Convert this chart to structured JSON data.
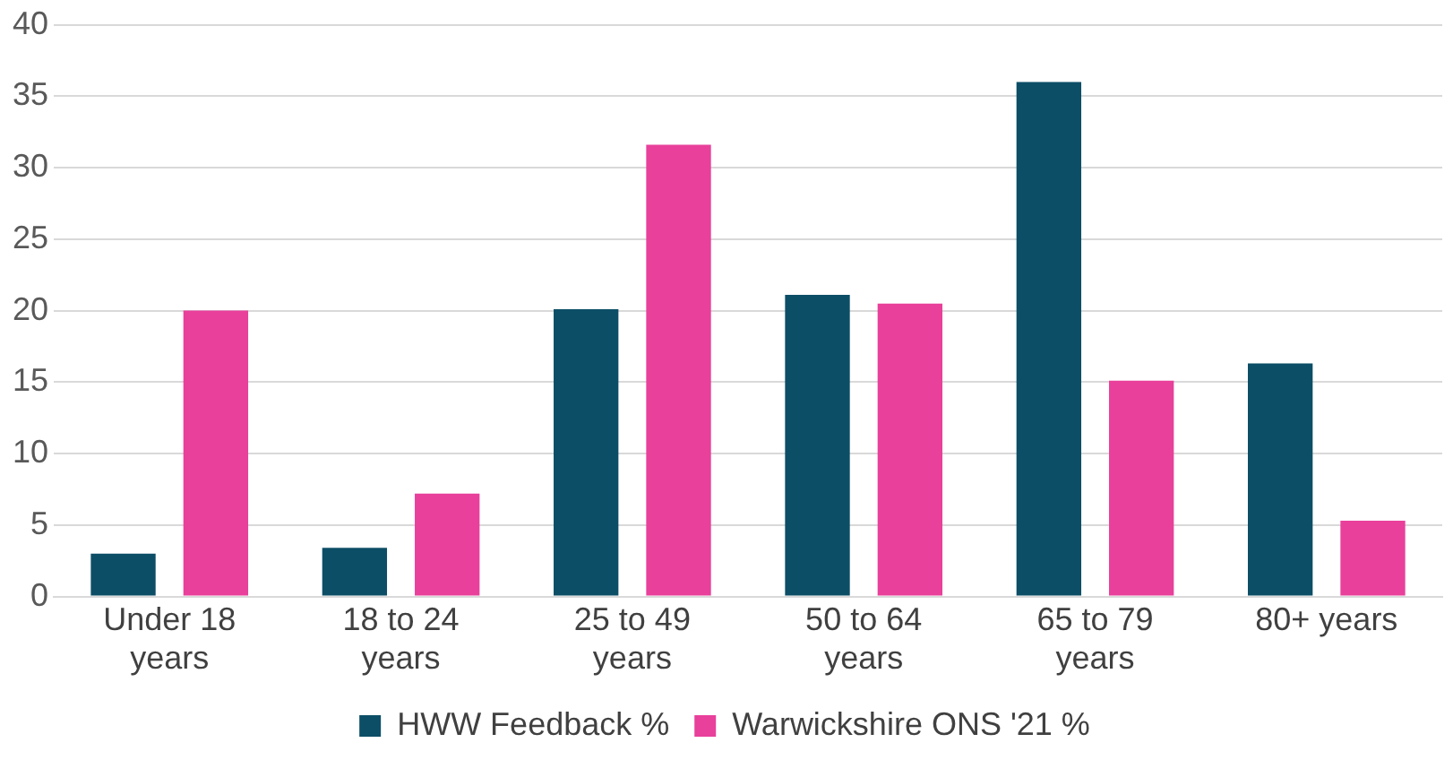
{
  "chart_data": {
    "type": "bar",
    "categories": [
      "Under 18 years",
      "18 to 24 years",
      "25 to 49 years",
      "50 to 64 years",
      "65 to 79 years",
      "80+ years"
    ],
    "series": [
      {
        "name": "HWW Feedback %",
        "color": "#0c4e66",
        "values": [
          3.0,
          3.4,
          20.1,
          21.1,
          36.0,
          16.3
        ]
      },
      {
        "name": "Warwickshire ONS '21 %",
        "color": "#e8409b",
        "values": [
          20.0,
          7.2,
          31.6,
          20.5,
          15.1,
          5.3
        ]
      }
    ],
    "ylim": [
      0,
      40
    ],
    "yticks": [
      0,
      5,
      10,
      15,
      20,
      25,
      30,
      35,
      40
    ],
    "grid": "y",
    "legend": "bottom"
  }
}
